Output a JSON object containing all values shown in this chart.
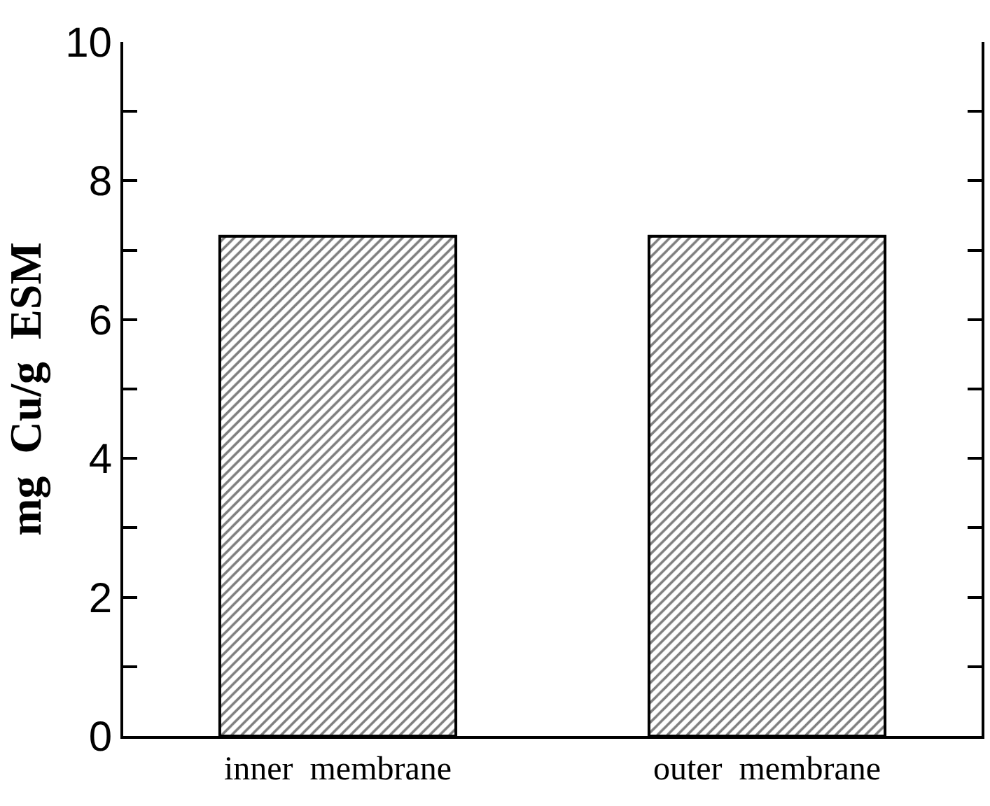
{
  "chart_data": {
    "type": "bar",
    "ylabel": "mg  Cu/g  ESM",
    "categories": [
      "inner  membrane",
      "outer  membrane"
    ],
    "values": [
      7.2,
      7.2
    ],
    "color": "#000000",
    "ylim": [
      0,
      10
    ],
    "yticks": [
      0,
      {
        "value": 1,
        "label": null
      },
      2,
      {
        "value": 3,
        "label": null
      },
      4,
      {
        "value": 5,
        "label": null
      },
      6,
      {
        "value": 7,
        "label": null
      },
      8,
      {
        "value": 9,
        "label": null
      },
      10
    ]
  }
}
